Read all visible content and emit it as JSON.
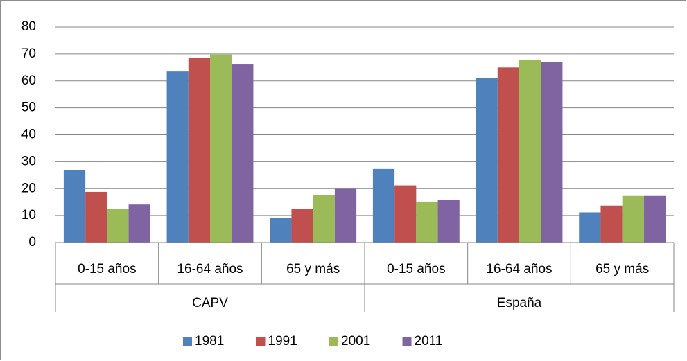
{
  "chart_data": {
    "type": "bar",
    "categories": [
      "0-15 años",
      "16-64 años",
      "65 y más",
      "0-15 años",
      "16-64 años",
      "65 y más"
    ],
    "category_groups": [
      "CAPV",
      "España"
    ],
    "series": [
      {
        "name": "1981",
        "color": "#4f81bd",
        "values": [
          26.8,
          63.5,
          9.2,
          27.3,
          61,
          11.2
        ]
      },
      {
        "name": "1991",
        "color": "#c0504d",
        "values": [
          18.8,
          68.6,
          12.6,
          21.2,
          65,
          13.7
        ]
      },
      {
        "name": "2001",
        "color": "#9bbb59",
        "values": [
          12.6,
          69.8,
          17.7,
          15.2,
          67.7,
          17.3
        ]
      },
      {
        "name": "2011",
        "color": "#8064a2",
        "values": [
          14.1,
          66.1,
          19.9,
          15.7,
          67.1,
          17.3
        ]
      }
    ],
    "ylim": [
      0,
      80
    ],
    "yticks": [
      0,
      10,
      20,
      30,
      40,
      50,
      60,
      70,
      80
    ],
    "grid": true,
    "legend": "bottom"
  }
}
